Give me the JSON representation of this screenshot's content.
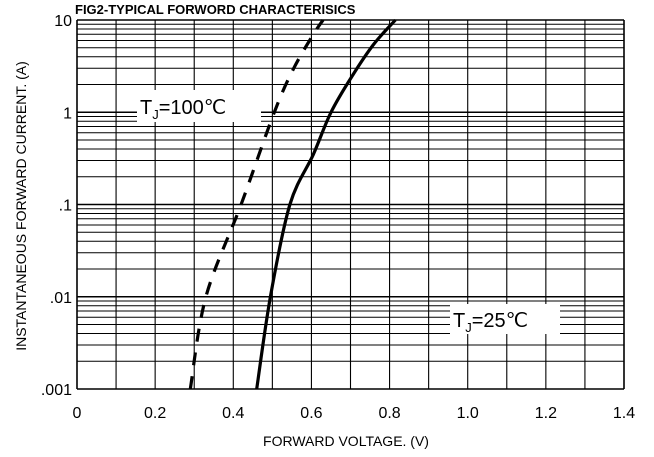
{
  "chart_data": {
    "type": "line",
    "title": "FIG2-TYPICAL FORWORD CHARACTERISICS",
    "xlabel": "FORWARD VOLTAGE. (V)",
    "ylabel": "INSTANTANEOUS FORWARD CURRENT. (A)",
    "xlim": [
      0,
      1.4
    ],
    "ylim": [
      0.001,
      10
    ],
    "yscale": "log",
    "grid": true,
    "x_ticks": [
      0,
      0.2,
      0.4,
      0.6,
      0.8,
      1.0,
      1.2,
      1.4
    ],
    "x_tick_labels": [
      "0",
      "0.2",
      "0.4",
      "0.6",
      "0.8",
      "1.0",
      "1.2",
      "1.4"
    ],
    "y_ticks": [
      0.001,
      0.01,
      0.1,
      1,
      10
    ],
    "y_tick_labels": [
      ".001",
      ".01",
      ".1",
      "1",
      "10"
    ],
    "series": [
      {
        "line_style": "dashed",
        "points": [
          [
            0.29,
            0.001
          ],
          [
            0.33,
            0.01
          ],
          [
            0.42,
            0.1
          ],
          [
            0.505,
            1
          ],
          [
            0.555,
            3
          ],
          [
            0.605,
            7
          ],
          [
            0.63,
            10
          ]
        ]
      },
      {
        "line_style": "solid",
        "points": [
          [
            0.46,
            0.001
          ],
          [
            0.495,
            0.01
          ],
          [
            0.545,
            0.1
          ],
          [
            0.605,
            0.35
          ],
          [
            0.65,
            1
          ],
          [
            0.705,
            2.5
          ],
          [
            0.76,
            5.5
          ],
          [
            0.815,
            10
          ]
        ]
      }
    ],
    "annotations": [
      {
        "main": "T",
        "sub": "J",
        "rest": "=100℃"
      },
      {
        "main": "T",
        "sub": "J",
        "rest": "=25℃"
      }
    ]
  }
}
